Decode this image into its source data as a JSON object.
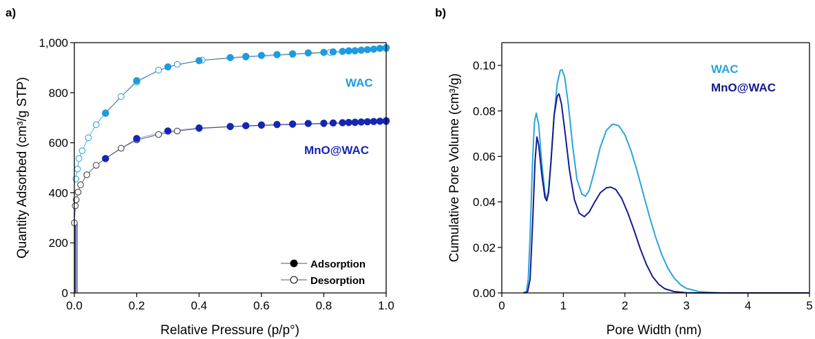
{
  "chart_data": [
    {
      "panel_label": "a)",
      "type": "scatter",
      "xlabel": "Relative Pressure (p/p°)",
      "ylabel": "Quantity Adsorbed (cm³/g STP)",
      "xlim": [
        0,
        1.0
      ],
      "ylim": [
        0,
        1000
      ],
      "xticks": [
        0.0,
        0.2,
        0.4,
        0.6,
        0.8,
        1.0
      ],
      "xtick_labels": [
        "0.0",
        "0.2",
        "0.4",
        "0.6",
        "0.8",
        "1.0"
      ],
      "yticks": [
        0,
        200,
        400,
        600,
        800,
        1000
      ],
      "ytick_labels": [
        "0",
        "200",
        "400",
        "600",
        "800",
        "1,000"
      ],
      "series": [
        {
          "name": "WAC",
          "color": "#1E9BE0",
          "adsorption": [
            [
              0.1,
              718
            ],
            [
              0.2,
              848
            ],
            [
              0.3,
              903
            ],
            [
              0.4,
              928
            ],
            [
              0.5,
              940
            ],
            [
              0.55,
              945
            ],
            [
              0.6,
              949
            ],
            [
              0.65,
              952
            ],
            [
              0.7,
              955
            ],
            [
              0.75,
              959
            ],
            [
              0.8,
              961
            ],
            [
              0.83,
              963
            ],
            [
              0.86,
              965
            ],
            [
              0.88,
              967
            ],
            [
              0.9,
              968
            ],
            [
              0.92,
              970
            ],
            [
              0.94,
              972
            ],
            [
              0.96,
              974
            ],
            [
              0.98,
              977
            ],
            [
              1.0,
              980
            ]
          ],
          "desorption": [
            [
              0.005,
              455
            ],
            [
              0.01,
              495
            ],
            [
              0.015,
              537
            ],
            [
              0.025,
              568
            ],
            [
              0.045,
              620
            ],
            [
              0.07,
              672
            ],
            [
              0.1,
              720
            ],
            [
              0.15,
              785
            ],
            [
              0.2,
              842
            ],
            [
              0.27,
              890
            ],
            [
              0.33,
              913
            ],
            [
              0.41,
              930
            ],
            [
              0.55,
              942
            ],
            [
              0.7,
              953
            ],
            [
              0.82,
              961
            ],
            [
              0.9,
              966
            ],
            [
              1.0,
              976
            ]
          ]
        },
        {
          "name": "MnO@WAC",
          "color": "#1426B4",
          "adsorption": [
            [
              0.1,
              537
            ],
            [
              0.2,
              617
            ],
            [
              0.3,
              647
            ],
            [
              0.4,
              659
            ],
            [
              0.5,
              665
            ],
            [
              0.55,
              668
            ],
            [
              0.6,
              671
            ],
            [
              0.65,
              673
            ],
            [
              0.7,
              675
            ],
            [
              0.75,
              677
            ],
            [
              0.8,
              678
            ],
            [
              0.83,
              679
            ],
            [
              0.86,
              680
            ],
            [
              0.88,
              681
            ],
            [
              0.9,
              682
            ],
            [
              0.92,
              683
            ],
            [
              0.94,
              684
            ],
            [
              0.96,
              685
            ],
            [
              0.98,
              686
            ],
            [
              1.0,
              688
            ]
          ],
          "desorption": [
            [
              0.0,
              280
            ],
            [
              0.003,
              348
            ],
            [
              0.006,
              372
            ],
            [
              0.012,
              403
            ],
            [
              0.02,
              432
            ],
            [
              0.04,
              472
            ],
            [
              0.07,
              510
            ],
            [
              0.1,
              537
            ],
            [
              0.15,
              578
            ],
            [
              0.2,
              611
            ],
            [
              0.27,
              633
            ],
            [
              0.33,
              647
            ],
            [
              0.4,
              657
            ],
            [
              0.5,
              664
            ],
            [
              0.6,
              669
            ],
            [
              0.7,
              673
            ],
            [
              0.8,
              676
            ],
            [
              0.9,
              680
            ],
            [
              1.0,
              684
            ]
          ]
        }
      ],
      "legend": {
        "position": "bottom-right",
        "entries": [
          {
            "label": "Adsorption",
            "marker": "filled-circle"
          },
          {
            "label": "Desorption",
            "marker": "open-circle"
          }
        ]
      },
      "grid": false
    },
    {
      "panel_label": "b)",
      "type": "line",
      "xlabel": "Pore Width (nm)",
      "ylabel": "Cumulative Pore Volume (cm³/g)",
      "xlim": [
        0,
        5
      ],
      "ylim": [
        0,
        0.11
      ],
      "xticks": [
        0,
        1,
        2,
        3,
        4,
        5
      ],
      "xtick_labels": [
        "0",
        "1",
        "2",
        "3",
        "4",
        "5"
      ],
      "yticks": [
        0.0,
        0.02,
        0.04,
        0.06,
        0.08,
        0.1
      ],
      "ytick_labels": [
        "0.00",
        "0.02",
        "0.04",
        "0.06",
        "0.08",
        "0.10"
      ],
      "series": [
        {
          "name": "WAC",
          "color": "#29A3DB",
          "points": [
            [
              0.35,
              0.0
            ],
            [
              0.4,
              0.0005
            ],
            [
              0.43,
              0.006
            ],
            [
              0.46,
              0.025
            ],
            [
              0.5,
              0.058
            ],
            [
              0.53,
              0.075
            ],
            [
              0.56,
              0.079
            ],
            [
              0.6,
              0.074
            ],
            [
              0.65,
              0.057
            ],
            [
              0.7,
              0.044
            ],
            [
              0.73,
              0.041
            ],
            [
              0.76,
              0.045
            ],
            [
              0.8,
              0.058
            ],
            [
              0.85,
              0.078
            ],
            [
              0.9,
              0.092
            ],
            [
              0.95,
              0.0978
            ],
            [
              0.98,
              0.098
            ],
            [
              1.02,
              0.095
            ],
            [
              1.08,
              0.083
            ],
            [
              1.15,
              0.065
            ],
            [
              1.22,
              0.05
            ],
            [
              1.3,
              0.0435
            ],
            [
              1.36,
              0.0425
            ],
            [
              1.42,
              0.045
            ],
            [
              1.5,
              0.053
            ],
            [
              1.6,
              0.064
            ],
            [
              1.7,
              0.0715
            ],
            [
              1.8,
              0.0742
            ],
            [
              1.9,
              0.0735
            ],
            [
              2.0,
              0.0695
            ],
            [
              2.1,
              0.0625
            ],
            [
              2.2,
              0.0535
            ],
            [
              2.3,
              0.0435
            ],
            [
              2.4,
              0.0335
            ],
            [
              2.5,
              0.0245
            ],
            [
              2.6,
              0.0168
            ],
            [
              2.7,
              0.0108
            ],
            [
              2.8,
              0.0066
            ],
            [
              2.9,
              0.0037
            ],
            [
              3.0,
              0.002
            ],
            [
              3.2,
              0.0006
            ],
            [
              3.4,
              0.0002
            ],
            [
              3.6,
              0.0
            ],
            [
              5.0,
              0.0
            ]
          ]
        },
        {
          "name": "MnO@WAC",
          "color": "#141A8C",
          "points": [
            [
              0.35,
              0.0
            ],
            [
              0.42,
              0.0005
            ],
            [
              0.46,
              0.006
            ],
            [
              0.5,
              0.03
            ],
            [
              0.54,
              0.058
            ],
            [
              0.57,
              0.0685
            ],
            [
              0.6,
              0.065
            ],
            [
              0.65,
              0.052
            ],
            [
              0.7,
              0.042
            ],
            [
              0.73,
              0.0405
            ],
            [
              0.76,
              0.044
            ],
            [
              0.8,
              0.058
            ],
            [
              0.85,
              0.078
            ],
            [
              0.9,
              0.0865
            ],
            [
              0.93,
              0.0875
            ],
            [
              0.97,
              0.083
            ],
            [
              1.03,
              0.07
            ],
            [
              1.1,
              0.054
            ],
            [
              1.18,
              0.041
            ],
            [
              1.26,
              0.035
            ],
            [
              1.34,
              0.0335
            ],
            [
              1.42,
              0.0355
            ],
            [
              1.5,
              0.0395
            ],
            [
              1.6,
              0.044
            ],
            [
              1.7,
              0.0462
            ],
            [
              1.77,
              0.0465
            ],
            [
              1.85,
              0.0455
            ],
            [
              1.95,
              0.0415
            ],
            [
              2.05,
              0.035
            ],
            [
              2.15,
              0.0275
            ],
            [
              2.25,
              0.0195
            ],
            [
              2.35,
              0.0125
            ],
            [
              2.45,
              0.0072
            ],
            [
              2.55,
              0.0038
            ],
            [
              2.65,
              0.0018
            ],
            [
              2.8,
              0.0006
            ],
            [
              3.0,
              0.0001
            ],
            [
              3.2,
              0.0
            ],
            [
              5.0,
              0.0
            ]
          ]
        }
      ],
      "legend": {
        "position": "top-right",
        "entries": [
          {
            "label": "WAC",
            "color": "#29A3DB"
          },
          {
            "label": "MnO@WAC",
            "color": "#141A8C"
          }
        ]
      },
      "grid": false
    }
  ]
}
